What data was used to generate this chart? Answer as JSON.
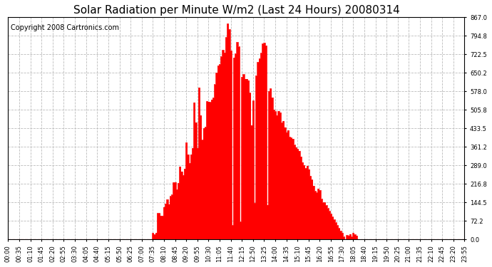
{
  "title": "Solar Radiation per Minute W/m2 (Last 24 Hours) 20080314",
  "copyright": "Copyright 2008 Cartronics.com",
  "bar_color": "#ff0000",
  "background_color": "#ffffff",
  "plot_bg_color": "#ffffff",
  "grid_color": "#bbbbbb",
  "grid_linestyle": "--",
  "y_min": 0.0,
  "y_max": 867.0,
  "yticks": [
    0.0,
    72.2,
    144.5,
    216.8,
    289.0,
    361.2,
    433.5,
    505.8,
    578.0,
    650.2,
    722.5,
    794.8,
    867.0
  ],
  "title_fontsize": 11,
  "tick_fontsize": 6.0,
  "copyright_fontsize": 7
}
